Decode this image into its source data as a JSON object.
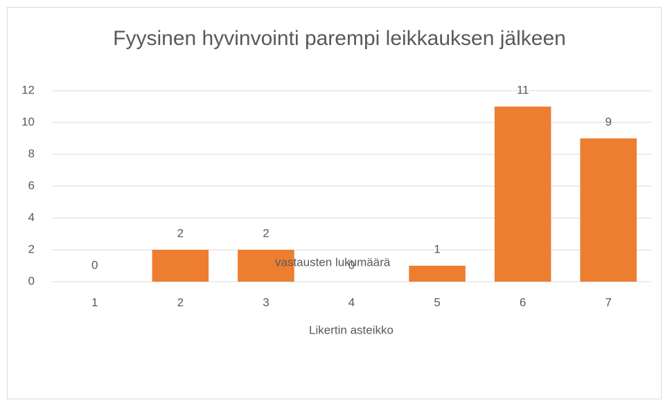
{
  "chart_data": {
    "type": "bar",
    "title": "Fyysinen hyvinvointi parempi leikkauksen jälkeen",
    "categories": [
      "1",
      "2",
      "3",
      "4",
      "5",
      "6",
      "7"
    ],
    "series": [
      {
        "name": "vastausten lukumäärä",
        "color": "#ed7d31",
        "values": [
          0,
          2,
          2,
          0,
          1,
          11,
          9
        ]
      }
    ],
    "xlabel": "Likertin asteikko",
    "ylim": [
      0,
      12
    ],
    "yticks": [
      0,
      2,
      4,
      6,
      8,
      10,
      12
    ],
    "grid": true,
    "legend": "bottom"
  }
}
